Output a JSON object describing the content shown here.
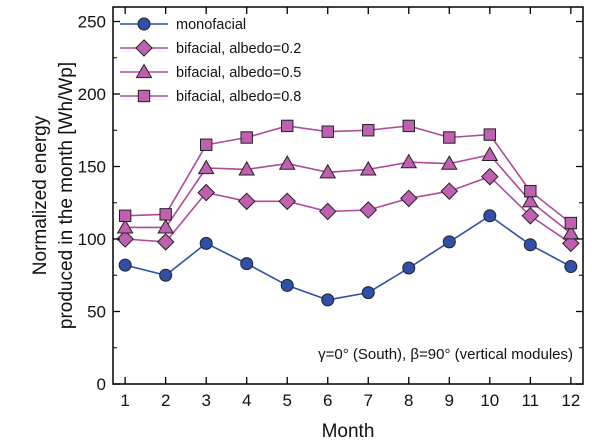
{
  "chart_data": {
    "type": "line",
    "xlabel": "Month",
    "ylabel_lines": [
      "Normalized energy",
      "produced in the month [Wh/Wp]"
    ],
    "annotation": "γ=0° (South), β=90° (vertical modules)",
    "categories": [
      "1",
      "2",
      "3",
      "4",
      "5",
      "6",
      "7",
      "8",
      "9",
      "10",
      "11",
      "12"
    ],
    "x": [
      1,
      2,
      3,
      4,
      5,
      6,
      7,
      8,
      9,
      10,
      11,
      12
    ],
    "xlim": [
      0.7,
      12.3
    ],
    "ylim": [
      0,
      260
    ],
    "yticks": [
      0,
      50,
      100,
      150,
      200,
      250
    ],
    "grid": false,
    "legend_position": "top-left",
    "series": [
      {
        "name": "monofacial",
        "marker": "circle",
        "line_color": "#2f4fa8",
        "marker_fill": "#2f4fa8",
        "values": [
          82,
          75,
          97,
          83,
          68,
          58,
          63,
          80,
          98,
          116,
          96,
          81
        ]
      },
      {
        "name": "bifacial, albedo=0.2",
        "marker": "diamond",
        "line_color": "#b04a9a",
        "marker_fill": "#c060b0",
        "values": [
          100,
          98,
          132,
          126,
          126,
          119,
          120,
          128,
          133,
          143,
          116,
          97
        ]
      },
      {
        "name": "bifacial, albedo=0.5",
        "marker": "triangle",
        "line_color": "#b04a9a",
        "marker_fill": "#c060b0",
        "values": [
          108,
          108,
          149,
          148,
          152,
          146,
          148,
          153,
          152,
          158,
          126,
          104
        ]
      },
      {
        "name": "bifacial, albedo=0.8",
        "marker": "square",
        "line_color": "#b04a9a",
        "marker_fill": "#c060b0",
        "values": [
          116,
          117,
          165,
          170,
          178,
          174,
          175,
          178,
          170,
          172,
          133,
          111
        ]
      }
    ]
  }
}
